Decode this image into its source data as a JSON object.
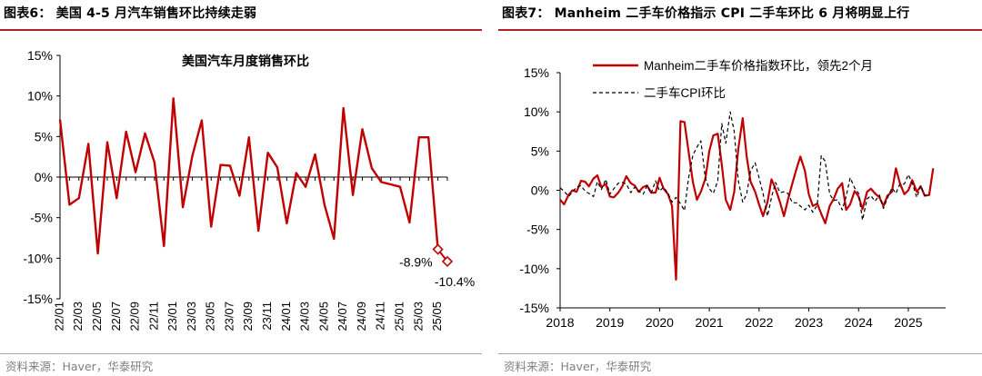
{
  "left": {
    "title": "图表6： 美国 4-5 月汽车销售环比持续走弱",
    "source": "资料来源：Haver，华泰研究",
    "chart_data": {
      "type": "line",
      "title": "美国汽车月度销售环比",
      "xlabel": "",
      "ylabel": "",
      "ylim": [
        -15,
        15
      ],
      "y_ticks": [
        "15%",
        "10%",
        "5%",
        "0%",
        "-5%",
        "-10%",
        "-15%"
      ],
      "y_tick_values": [
        15,
        10,
        5,
        0,
        -5,
        -10,
        -15
      ],
      "x_tick_labels": [
        "22/01",
        "22/03",
        "22/05",
        "22/07",
        "22/09",
        "22/11",
        "23/01",
        "23/03",
        "23/05",
        "23/07",
        "23/09",
        "23/11",
        "24/01",
        "24/03",
        "24/05",
        "24/07",
        "24/09",
        "24/11",
        "25/01",
        "25/03",
        "25/05"
      ],
      "categories": [
        "22/01",
        "22/02",
        "22/03",
        "22/04",
        "22/05",
        "22/06",
        "22/07",
        "22/08",
        "22/09",
        "22/10",
        "22/11",
        "22/12",
        "23/01",
        "23/02",
        "23/03",
        "23/04",
        "23/05",
        "23/06",
        "23/07",
        "23/08",
        "23/09",
        "23/10",
        "23/11",
        "23/12",
        "24/01",
        "24/02",
        "24/03",
        "24/04",
        "24/05",
        "24/06",
        "24/07",
        "24/08",
        "24/09",
        "24/10",
        "24/11",
        "24/12",
        "25/01",
        "25/02",
        "25/03",
        "25/04",
        "25/05"
      ],
      "series": [
        {
          "color": "#c00000",
          "values": [
            7.1,
            -3.4,
            -2.6,
            4.1,
            -9.4,
            4.3,
            -2.6,
            5.6,
            0.6,
            5.4,
            1.8,
            -8.5,
            9.7,
            -3.7,
            2.6,
            7.0,
            -6.1,
            1.5,
            1.4,
            -2.3,
            4.9,
            -6.6,
            3.0,
            1.2,
            -5.7,
            0.5,
            -1.2,
            2.8,
            -3.4,
            -7.6,
            8.5,
            -2.2,
            5.9,
            1.1,
            -0.6,
            -0.9,
            -1.2,
            -5.6,
            4.9,
            4.9,
            -8.9
          ]
        }
      ],
      "highlighted_points": [
        {
          "category": "25/05",
          "value": -8.9,
          "label": "-8.9%"
        },
        {
          "category": "25/06",
          "value": -10.4,
          "label": "-10.4%"
        }
      ],
      "grid": false
    }
  },
  "right": {
    "title": "图表7： Manheim 二手车价格指示 CPI 二手车环比 6 月将明显上行",
    "source": "资料来源：Haver，华泰研究",
    "chart_data": {
      "type": "line",
      "title": "",
      "xlabel": "",
      "ylabel": "",
      "ylim": [
        -15,
        15
      ],
      "xlim": [
        2018,
        2025.75
      ],
      "y_ticks": [
        "15%",
        "10%",
        "5%",
        "0%",
        "-5%",
        "-10%",
        "-15%"
      ],
      "y_tick_values": [
        15,
        10,
        5,
        0,
        -5,
        -10,
        -15
      ],
      "x_ticks": [
        "2018",
        "2019",
        "2020",
        "2021",
        "2022",
        "2023",
        "2024",
        "2025"
      ],
      "x_tick_values": [
        2018,
        2019,
        2020,
        2021,
        2022,
        2023,
        2024,
        2025
      ],
      "legend": "top-left",
      "grid": false,
      "series": [
        {
          "name": "Manheim二手车价格指数环比，领先2个月",
          "color": "#c00000",
          "style": "solid",
          "points": [
            [
              2018.0,
              -1.2
            ],
            [
              2018.08,
              -1.8
            ],
            [
              2018.17,
              -0.6
            ],
            [
              2018.25,
              0.0
            ],
            [
              2018.33,
              -0.2
            ],
            [
              2018.42,
              1.2
            ],
            [
              2018.5,
              1.1
            ],
            [
              2018.58,
              0.5
            ],
            [
              2018.67,
              1.5
            ],
            [
              2018.75,
              1.9
            ],
            [
              2018.83,
              0.4
            ],
            [
              2018.92,
              0.8
            ],
            [
              2019.0,
              -0.8
            ],
            [
              2019.08,
              -0.9
            ],
            [
              2019.17,
              -0.3
            ],
            [
              2019.25,
              0.5
            ],
            [
              2019.33,
              1.8
            ],
            [
              2019.42,
              0.9
            ],
            [
              2019.5,
              0.6
            ],
            [
              2019.58,
              -0.2
            ],
            [
              2019.67,
              0.4
            ],
            [
              2019.75,
              0.6
            ],
            [
              2019.83,
              -0.3
            ],
            [
              2019.92,
              -0.3
            ],
            [
              2020.0,
              1.6
            ],
            [
              2020.08,
              0.2
            ],
            [
              2020.17,
              -0.5
            ],
            [
              2020.25,
              -2.0
            ],
            [
              2020.33,
              -11.4
            ],
            [
              2020.42,
              8.8
            ],
            [
              2020.5,
              8.7
            ],
            [
              2020.58,
              5.0
            ],
            [
              2020.67,
              1.0
            ],
            [
              2020.75,
              -1.2
            ],
            [
              2020.83,
              -0.2
            ],
            [
              2020.92,
              1.5
            ],
            [
              2021.0,
              5.0
            ],
            [
              2021.08,
              7.0
            ],
            [
              2021.17,
              7.2
            ],
            [
              2021.25,
              3.3
            ],
            [
              2021.33,
              -1.2
            ],
            [
              2021.42,
              -2.5
            ],
            [
              2021.5,
              -0.2
            ],
            [
              2021.58,
              5.2
            ],
            [
              2021.67,
              9.2
            ],
            [
              2021.75,
              4.3
            ],
            [
              2021.83,
              1.1
            ],
            [
              2021.92,
              -0.2
            ],
            [
              2022.0,
              -1.8
            ],
            [
              2022.08,
              -3.3
            ],
            [
              2022.17,
              -1.5
            ],
            [
              2022.25,
              1.4
            ],
            [
              2022.33,
              0.2
            ],
            [
              2022.42,
              -1.5
            ],
            [
              2022.5,
              -3.3
            ],
            [
              2022.58,
              -1.2
            ],
            [
              2022.67,
              0.9
            ],
            [
              2022.75,
              2.7
            ],
            [
              2022.83,
              4.3
            ],
            [
              2022.92,
              2.5
            ],
            [
              2023.0,
              -0.5
            ],
            [
              2023.08,
              -2.0
            ],
            [
              2023.17,
              -1.7
            ],
            [
              2023.25,
              -3.0
            ],
            [
              2023.33,
              -4.2
            ],
            [
              2023.42,
              -2.0
            ],
            [
              2023.5,
              -1.1
            ],
            [
              2023.58,
              0.2
            ],
            [
              2023.67,
              0.9
            ],
            [
              2023.75,
              -2.5
            ],
            [
              2023.83,
              -1.8
            ],
            [
              2023.92,
              -0.1
            ],
            [
              2024.0,
              -0.8
            ],
            [
              2024.08,
              -2.4
            ],
            [
              2024.17,
              -0.2
            ],
            [
              2024.25,
              0.2
            ],
            [
              2024.33,
              -0.4
            ],
            [
              2024.42,
              -0.9
            ],
            [
              2024.5,
              -2.0
            ],
            [
              2024.58,
              -0.7
            ],
            [
              2024.67,
              -0.2
            ],
            [
              2024.75,
              2.8
            ],
            [
              2024.83,
              0.9
            ],
            [
              2024.92,
              -0.5
            ],
            [
              2025.0,
              0.0
            ],
            [
              2025.08,
              1.3
            ],
            [
              2025.17,
              -0.2
            ],
            [
              2025.25,
              0.5
            ],
            [
              2025.33,
              -0.7
            ],
            [
              2025.42,
              -0.6
            ],
            [
              2025.5,
              2.8
            ]
          ]
        },
        {
          "name": "二手车CPI环比",
          "color": "#000000",
          "style": "dashed",
          "points": [
            [
              2018.0,
              0.3
            ],
            [
              2018.08,
              -0.1
            ],
            [
              2018.17,
              -0.8
            ],
            [
              2018.25,
              -0.2
            ],
            [
              2018.33,
              0.4
            ],
            [
              2018.42,
              0.6
            ],
            [
              2018.5,
              -0.1
            ],
            [
              2018.58,
              -0.4
            ],
            [
              2018.67,
              -0.8
            ],
            [
              2018.75,
              1.1
            ],
            [
              2018.83,
              0.1
            ],
            [
              2018.92,
              1.4
            ],
            [
              2019.0,
              -0.5
            ],
            [
              2019.08,
              0.2
            ],
            [
              2019.17,
              0.9
            ],
            [
              2019.25,
              1.0
            ],
            [
              2019.33,
              0.8
            ],
            [
              2019.42,
              -0.3
            ],
            [
              2019.5,
              0.4
            ],
            [
              2019.58,
              -0.1
            ],
            [
              2019.67,
              -0.5
            ],
            [
              2019.75,
              0.6
            ],
            [
              2019.83,
              -0.4
            ],
            [
              2019.92,
              1.2
            ],
            [
              2020.0,
              -0.1
            ],
            [
              2020.08,
              0.4
            ],
            [
              2020.17,
              -0.4
            ],
            [
              2020.25,
              -1.5
            ],
            [
              2020.33,
              -0.9
            ],
            [
              2020.42,
              -1.7
            ],
            [
              2020.5,
              -2.6
            ],
            [
              2020.58,
              1.5
            ],
            [
              2020.67,
              4.5
            ],
            [
              2020.75,
              5.5
            ],
            [
              2020.83,
              6.3
            ],
            [
              2020.92,
              1.5
            ],
            [
              2021.0,
              0.2
            ],
            [
              2021.08,
              -0.4
            ],
            [
              2021.17,
              1.2
            ],
            [
              2021.25,
              8.5
            ],
            [
              2021.33,
              6.0
            ],
            [
              2021.42,
              10.0
            ],
            [
              2021.5,
              7.5
            ],
            [
              2021.58,
              1.3
            ],
            [
              2021.67,
              -1.5
            ],
            [
              2021.75,
              -0.5
            ],
            [
              2021.83,
              2.5
            ],
            [
              2021.92,
              3.5
            ],
            [
              2022.0,
              1.6
            ],
            [
              2022.08,
              -0.4
            ],
            [
              2022.17,
              -3.3
            ],
            [
              2022.25,
              -0.9
            ],
            [
              2022.33,
              1.0
            ],
            [
              2022.42,
              -0.3
            ],
            [
              2022.5,
              -0.2
            ],
            [
              2022.58,
              -0.4
            ],
            [
              2022.67,
              -1.6
            ],
            [
              2022.75,
              -1.6
            ],
            [
              2022.83,
              -2.0
            ],
            [
              2022.92,
              -2.5
            ],
            [
              2023.0,
              -1.9
            ],
            [
              2023.08,
              -2.8
            ],
            [
              2023.17,
              -1.9
            ],
            [
              2023.25,
              4.4
            ],
            [
              2023.33,
              3.7
            ],
            [
              2023.42,
              -0.5
            ],
            [
              2023.5,
              -1.3
            ],
            [
              2023.58,
              -1.2
            ],
            [
              2023.67,
              -2.5
            ],
            [
              2023.75,
              -0.8
            ],
            [
              2023.83,
              1.6
            ],
            [
              2023.92,
              0.3
            ],
            [
              2024.0,
              -0.4
            ],
            [
              2024.08,
              -3.8
            ],
            [
              2024.17,
              -1.1
            ],
            [
              2024.25,
              -0.7
            ],
            [
              2024.33,
              -1.4
            ],
            [
              2024.42,
              -0.6
            ],
            [
              2024.5,
              -2.3
            ],
            [
              2024.58,
              -1.0
            ],
            [
              2024.67,
              0.3
            ],
            [
              2024.75,
              -0.4
            ],
            [
              2024.83,
              0.8
            ],
            [
              2024.92,
              0.8
            ],
            [
              2025.0,
              2.0
            ],
            [
              2025.08,
              0.9
            ],
            [
              2025.17,
              -0.9
            ],
            [
              2025.25,
              0.6
            ],
            [
              2025.33,
              -0.7
            ],
            [
              2025.42,
              -0.5
            ]
          ]
        }
      ]
    }
  }
}
